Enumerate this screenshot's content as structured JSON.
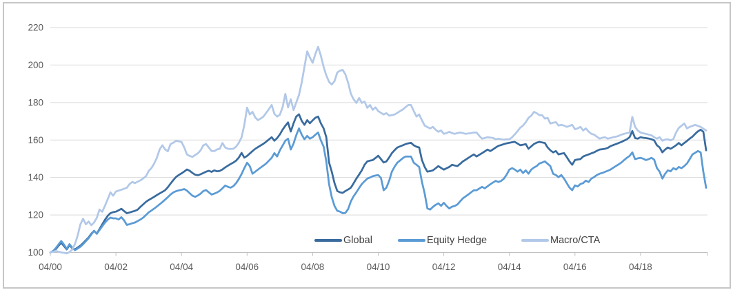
{
  "colors": {
    "background": "#FFFFFF",
    "frame_border": "#C6C6C6",
    "gridline": "#D9D9D9",
    "axis_line": "#BFBFBF",
    "tick_text": "#595959",
    "legend_text": "#404040"
  },
  "chart_data": {
    "type": "line",
    "title": "",
    "grid": true,
    "legend_position": "inside-bottom",
    "x_axis": {
      "unit": "months since 04/2000",
      "range_months": [
        0,
        240
      ],
      "tick_months": [
        0,
        24,
        48,
        72,
        96,
        120,
        144,
        168,
        192,
        216
      ],
      "tick_labels": [
        "04/00",
        "04/02",
        "04/04",
        "04/06",
        "04/08",
        "04/10",
        "04/12",
        "04/14",
        "04/16",
        "04/18"
      ]
    },
    "y_axis": {
      "min": 100,
      "max": 220,
      "step": 20,
      "tick_labels": [
        "100",
        "120",
        "140",
        "160",
        "180",
        "200",
        "220"
      ]
    },
    "series": [
      {
        "name": "Global",
        "color": "#396B9E",
        "monthly_values": [
          100,
          100.5,
          101.8,
          103.6,
          105.2,
          103.4,
          101.6,
          103.9,
          102.3,
          101.6,
          102.6,
          103.6,
          105,
          106.5,
          108,
          110,
          111.5,
          110,
          112.5,
          115,
          117.5,
          119.5,
          121,
          121.5,
          121.8,
          122.5,
          123.3,
          122.1,
          120.9,
          121.3,
          121.8,
          122.2,
          122.9,
          124.4,
          125.7,
          127,
          128,
          128.8,
          129.7,
          130.6,
          131.5,
          132.3,
          133.2,
          134.8,
          136.7,
          138.6,
          140.3,
          141.3,
          142.2,
          143.2,
          144.3,
          143.6,
          142.4,
          141.5,
          141.2,
          141.7,
          142.4,
          143.1,
          143.6,
          143,
          143.8,
          143.3,
          143.5,
          144.3,
          145.4,
          146.3,
          147.2,
          148,
          149,
          150.7,
          153.1,
          150.6,
          151.5,
          152.8,
          154.1,
          155.3,
          156.2,
          157.1,
          158,
          159.1,
          160.3,
          161.5,
          159.6,
          161,
          163,
          165.5,
          167.6,
          169.4,
          164.5,
          168.9,
          172.5,
          173.7,
          170.2,
          168.1,
          170.6,
          168.9,
          170.5,
          171.9,
          172.5,
          168.9,
          166.2,
          161.5,
          148,
          143.1,
          137,
          132.8,
          132.1,
          131.8,
          132.8,
          133.6,
          134.6,
          136.9,
          139.4,
          141.6,
          143.8,
          146.8,
          148.6,
          149,
          149.3,
          150.4,
          151.6,
          149.8,
          148,
          148.6,
          150.7,
          153,
          154.6,
          156,
          156.6,
          157.2,
          157.8,
          158.2,
          158.5,
          157.2,
          156.4,
          156,
          149.3,
          145.6,
          143.1,
          143.4,
          143.8,
          144.9,
          146.1,
          145.1,
          144.2,
          144.9,
          145.6,
          146.8,
          146.4,
          146.1,
          147.3,
          148.6,
          149.5,
          150.5,
          151.4,
          152.3,
          151.2,
          152.1,
          153,
          153.9,
          154.9,
          154.1,
          155,
          156,
          156.9,
          157.3,
          157.8,
          158.2,
          158.5,
          158.8,
          159,
          158.1,
          157.2,
          157.5,
          157.8,
          155.3,
          156.6,
          157.9,
          158.6,
          159,
          158.7,
          158.4,
          156,
          154.5,
          153.4,
          154.1,
          152.3,
          152.7,
          153,
          150.9,
          148.6,
          146.8,
          149.3,
          149.6,
          149.8,
          151.2,
          151.8,
          152.3,
          152.9,
          153.4,
          154.2,
          154.9,
          155.1,
          155.3,
          155.8,
          156.7,
          157.3,
          157.8,
          158.4,
          159,
          159.7,
          160.4,
          161.5,
          164.8,
          161,
          160.7,
          161.5,
          161.2,
          161,
          160.8,
          160.4,
          159.8,
          157.2,
          156,
          153.4,
          154.9,
          156,
          155.3,
          156.2,
          157.2,
          158.4,
          157.2,
          158.4,
          159.5,
          160.7,
          161.8,
          163.3,
          164.6,
          165.5,
          164.4,
          154.5
        ]
      },
      {
        "name": "Equity Hedge",
        "color": "#5B9BD5",
        "monthly_values": [
          100,
          100.8,
          102.3,
          104.3,
          106.1,
          104.2,
          101.9,
          104.4,
          102.6,
          101.2,
          102.1,
          103.1,
          104.4,
          106,
          107.6,
          109.6,
          111.6,
          110,
          112,
          114,
          116,
          117.5,
          118.6,
          118.2,
          118.2,
          117.6,
          118.8,
          117.1,
          114.7,
          115.1,
          115.6,
          116,
          116.8,
          117.6,
          118.6,
          120,
          121.4,
          122.4,
          123.4,
          124.5,
          125.7,
          126.9,
          128.2,
          129.5,
          130.9,
          132,
          132.7,
          133.1,
          133.4,
          133.8,
          133,
          131.6,
          130.3,
          129.7,
          130.4,
          131.4,
          132.8,
          133.3,
          132.1,
          130.9,
          131.4,
          132,
          132.9,
          134.2,
          135.7,
          135,
          134.6,
          135.4,
          137,
          139.2,
          141.9,
          145,
          147.9,
          146,
          142,
          143.1,
          144.2,
          145.3,
          146.4,
          147.5,
          149,
          150.5,
          153,
          151.2,
          154.5,
          157,
          159.6,
          160.7,
          154.9,
          158.1,
          162.5,
          166.2,
          162.8,
          160.4,
          162.2,
          160.7,
          161.5,
          162.8,
          164,
          159.8,
          156.5,
          148.5,
          136.5,
          129.5,
          124.8,
          122.2,
          121.8,
          120.9,
          121.1,
          123.2,
          127.3,
          130,
          132.1,
          134.4,
          136.5,
          138,
          139.4,
          140,
          140.7,
          141,
          141.3,
          139.7,
          133.2,
          134.6,
          138.3,
          143.1,
          145.8,
          147.9,
          149.1,
          150.3,
          151.2,
          151.2,
          151.2,
          147.9,
          146.8,
          145.6,
          137.6,
          131.4,
          123.5,
          122.9,
          124.3,
          125.4,
          126.2,
          124.9,
          126.5,
          124.8,
          123.5,
          124.4,
          124.8,
          125.6,
          127.3,
          128.9,
          129.9,
          131,
          132.1,
          133.2,
          133.2,
          134.1,
          135,
          134.2,
          135.3,
          136.4,
          137.3,
          138.2,
          137.6,
          138.2,
          139.4,
          141.5,
          144.2,
          145,
          144.2,
          143.1,
          144.2,
          142.4,
          143.8,
          142,
          144.2,
          145.3,
          146.1,
          147.5,
          148,
          148.6,
          147.3,
          146.1,
          142,
          141.3,
          140.2,
          141.3,
          139.4,
          137,
          134.6,
          133.2,
          135.8,
          135.2,
          136.5,
          137,
          138.3,
          137.6,
          139.4,
          140.2,
          141.3,
          142,
          142.4,
          143,
          143.6,
          144.2,
          145.2,
          146.1,
          147,
          148,
          149.3,
          150.5,
          151.5,
          153.4,
          149.8,
          150.2,
          150.5,
          150,
          149.3,
          149.8,
          150.5,
          149.5,
          145,
          143.1,
          139.4,
          142,
          143.8,
          143.3,
          145,
          144.2,
          145.6,
          145,
          146.1,
          147.5,
          149.8,
          152.3,
          153.2,
          154.1,
          153.4,
          143,
          134.5
        ]
      },
      {
        "name": "Macro/CTA",
        "color": "#B2C8E8",
        "monthly_values": [
          100,
          100.3,
          100.8,
          100.4,
          100,
          99.8,
          99.5,
          100.2,
          101.5,
          104.5,
          109,
          115,
          118,
          115,
          116.5,
          114.5,
          116,
          118.5,
          122.9,
          121.7,
          125,
          128.4,
          132.1,
          130.3,
          132.5,
          133,
          133.5,
          134,
          134.5,
          136.5,
          137.6,
          137,
          137.8,
          138.5,
          139.5,
          140.7,
          143.5,
          145,
          147.5,
          150.5,
          155,
          157.2,
          155,
          154,
          157.8,
          158.5,
          159.6,
          159.3,
          159,
          156,
          152.3,
          151.5,
          151,
          152,
          152.9,
          154.5,
          157.2,
          157.8,
          156,
          154.1,
          154.1,
          155,
          155.3,
          158.4,
          156,
          155.3,
          155.2,
          155.3,
          156.5,
          158.5,
          161.5,
          168,
          177.3,
          173.6,
          175,
          172,
          170.6,
          171.5,
          172.5,
          174.5,
          176.5,
          178.7,
          174,
          172.5,
          173.5,
          177.5,
          184.6,
          177.4,
          181.7,
          176,
          180,
          184,
          190.8,
          199,
          207.3,
          204,
          201.2,
          206,
          209.7,
          205,
          199,
          194.5,
          191,
          189.6,
          191.4,
          196,
          197,
          197.4,
          195,
          190.5,
          184.6,
          181.7,
          179.8,
          182.4,
          179.8,
          180.5,
          177.2,
          178.7,
          176.1,
          177.4,
          175.4,
          174.5,
          173.6,
          174.3,
          173,
          173.3,
          173.6,
          174.5,
          175.4,
          176.3,
          177.5,
          178.7,
          178.7,
          175.5,
          172.5,
          173.6,
          170.5,
          167.7,
          166.9,
          166.2,
          167,
          165.5,
          164.4,
          165.1,
          163.3,
          163.7,
          164.4,
          163.7,
          163.3,
          163.7,
          164,
          163.7,
          163.3,
          163.5,
          163.7,
          164,
          164,
          162.2,
          160.7,
          161.1,
          161.5,
          161.3,
          161.1,
          160.4,
          160.7,
          160.4,
          160.2,
          160.4,
          160.4,
          161.5,
          163,
          164.8,
          166.6,
          167.7,
          169.5,
          171.8,
          173,
          175,
          174.3,
          173.2,
          173.2,
          171.4,
          171.8,
          168.8,
          169.2,
          169.5,
          167.7,
          168.1,
          167.7,
          167,
          167.5,
          168.1,
          165.8,
          166.2,
          167,
          165.1,
          166.2,
          164.5,
          163.3,
          162.9,
          161.8,
          160.7,
          161.2,
          161.5,
          160.7,
          161.1,
          161.5,
          161.8,
          162.2,
          162.9,
          163.3,
          163.7,
          164,
          172.3,
          167,
          165.1,
          164,
          163.6,
          163.3,
          162.9,
          162.5,
          161.5,
          160.7,
          161.5,
          159.6,
          160.2,
          160.4,
          159.8,
          160.5,
          164,
          166.5,
          167.6,
          168.8,
          166.2,
          167,
          167.5,
          168.1,
          167.5,
          167,
          166,
          165.1
        ]
      }
    ]
  }
}
